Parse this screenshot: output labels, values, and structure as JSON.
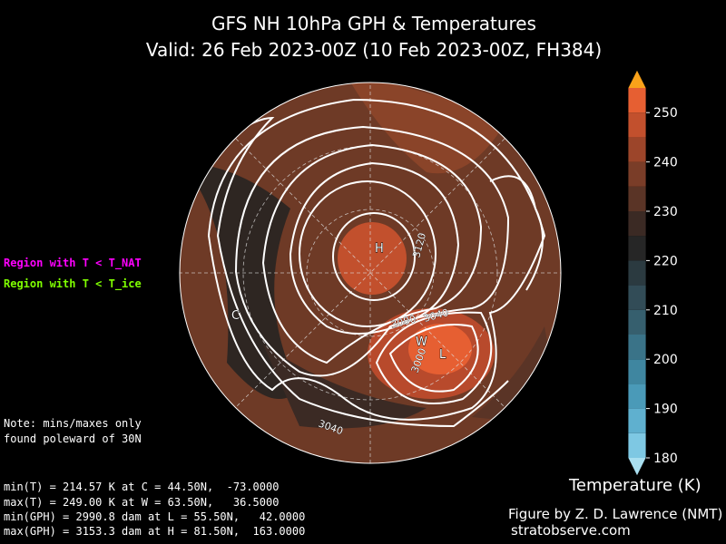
{
  "header": {
    "title": "GFS NH 10hPa GPH & Temperatures",
    "subtitle": "Valid: 26 Feb 2023-00Z  (10 Feb 2023-00Z, FH384)"
  },
  "legend": [
    "Region with T < T_NAT",
    "Region with T < T_ice"
  ],
  "note": [
    "Note: mins/maxes only",
    "found poleward of 30N"
  ],
  "stats": [
    "min(T) = 214.57 K at C = 44.50N,  -73.0000",
    "max(T) = 249.00 K at W = 63.50N,   36.5000",
    "min(GPH) = 2990.8 dam at L = 55.50N,   42.0000",
    "max(GPH) = 3153.3 dam at H = 81.50N,  163.0000"
  ],
  "credit": [
    "Figure by Z. D. Lawrence (NMT)",
    "stratobserve.com"
  ],
  "map": {
    "markers": [
      "H",
      "C",
      "W",
      "L"
    ],
    "contour_labels": [
      "3120",
      "3080",
      "3040",
      "3000",
      "3040"
    ]
  },
  "colorbar": {
    "label": "Temperature (K)",
    "lim": [
      180,
      255
    ],
    "ticks": [
      180,
      190,
      200,
      210,
      220,
      230,
      240,
      250
    ],
    "colors": [
      "#7ec8e3",
      "#5fb0cf",
      "#4a9ab8",
      "#3f86a0",
      "#3a7388",
      "#365f6e",
      "#324c57",
      "#2b3a40",
      "#262626",
      "#3b2a24",
      "#5a3426",
      "#7a3d28",
      "#9c452a",
      "#c2502d",
      "#e65f32"
    ],
    "under_color": "#a9dff0",
    "over_color": "#f9a21a"
  }
}
